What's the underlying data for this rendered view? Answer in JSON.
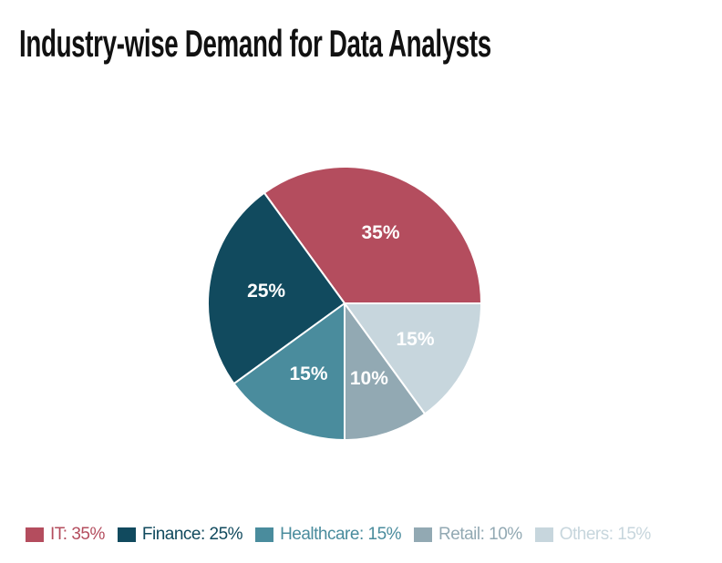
{
  "title": "Industry-wise Demand for Data Analysts",
  "chart_data": {
    "type": "pie",
    "title": "Industry-wise Demand for Data Analysts",
    "start_angle_deg": 0,
    "direction": "counterclockwise",
    "total": 100,
    "separator_color": "#ffffff",
    "percent_label_color": "#ffffff",
    "legend_position": "bottom",
    "slices": [
      {
        "label": "IT",
        "value": 35,
        "percent_label": "35%",
        "legend_label": "IT: 35%",
        "color": "#b44d5e"
      },
      {
        "label": "Finance",
        "value": 25,
        "percent_label": "25%",
        "legend_label": "Finance: 25%",
        "color": "#114a5e"
      },
      {
        "label": "Healthcare",
        "value": 15,
        "percent_label": "15%",
        "legend_label": "Healthcare: 15%",
        "color": "#4a8c9d"
      },
      {
        "label": "Retail",
        "value": 10,
        "percent_label": "10%",
        "legend_label": "Retail: 10%",
        "color": "#92a9b3"
      },
      {
        "label": "Others",
        "value": 15,
        "percent_label": "15%",
        "legend_label": "Others: 15%",
        "color": "#c7d6dd"
      }
    ]
  }
}
